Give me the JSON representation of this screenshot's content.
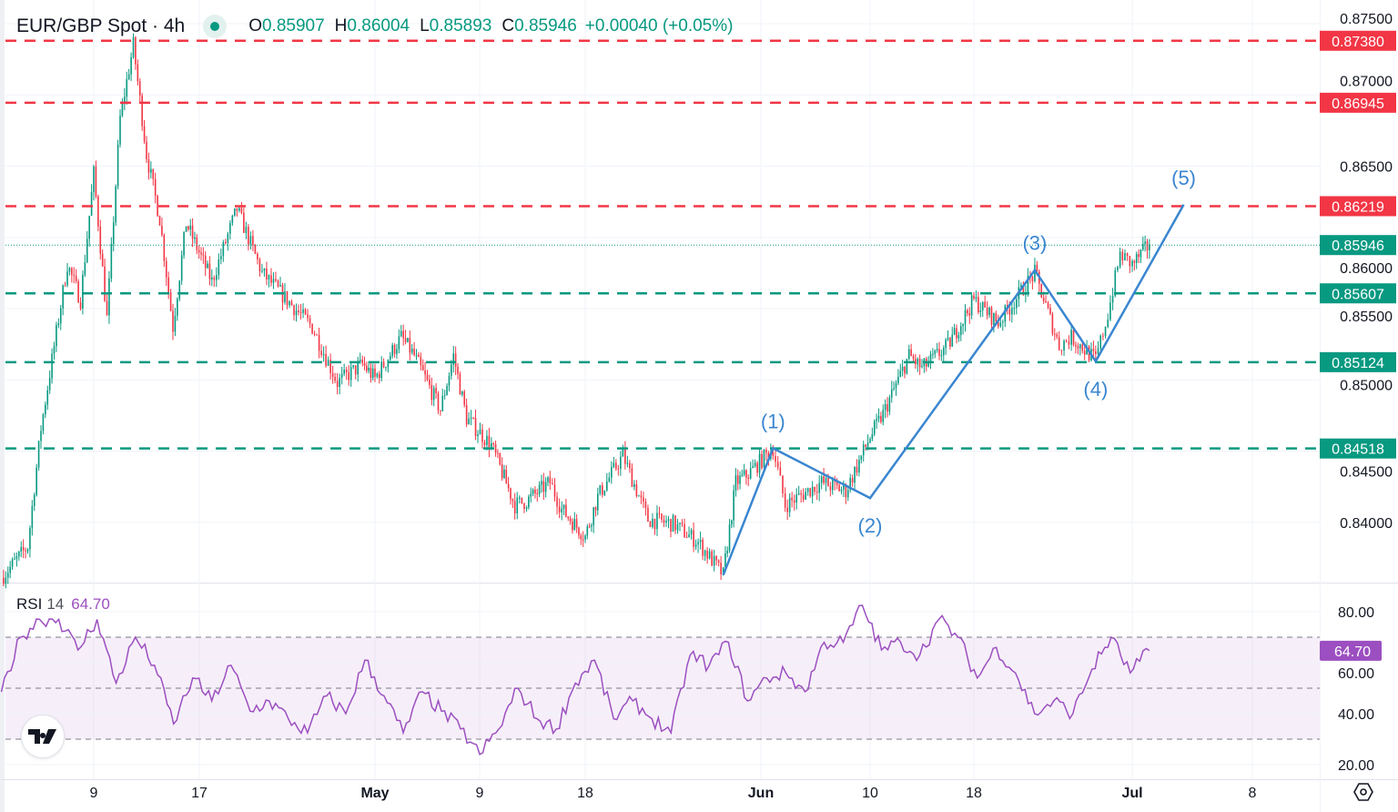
{
  "header": {
    "symbol": "EUR/GBP Spot · 4h",
    "open_label": "O",
    "open": "0.85907",
    "high_label": "H",
    "high": "0.86004",
    "low_label": "L",
    "low": "0.85893",
    "close_label": "C",
    "close": "0.85946",
    "change": "+0.00040 (+0.05%)",
    "market_status_icon": "market-open-dot"
  },
  "rsi_header": {
    "name": "RSI",
    "period": "14",
    "value": "64.70"
  },
  "colors": {
    "up": "#089981",
    "down": "#f23645",
    "rsi": "#9c4fc0",
    "wave": "#3a86d0",
    "resistance": "#f23645",
    "support": "#089981"
  },
  "chart_data": [
    {
      "type": "candlestick",
      "title": "EUR/GBP Spot · 4h",
      "ylim": [
        0.8355,
        0.8765
      ],
      "y_ticks": [
        "0.87500",
        "0.87000",
        "0.86500",
        "0.86000",
        "0.85500",
        "0.85000",
        "0.84500",
        "0.84000"
      ],
      "x_ticks": [
        {
          "label": "9",
          "date": "2024-04-09"
        },
        {
          "label": "17",
          "date": "2024-04-17"
        },
        {
          "label": "May",
          "date": "2024-05-01"
        },
        {
          "label": "9",
          "date": "2024-05-09"
        },
        {
          "label": "18",
          "date": "2024-05-18"
        },
        {
          "label": "Jun",
          "date": "2024-06-01"
        },
        {
          "label": "10",
          "date": "2024-06-10"
        },
        {
          "label": "18",
          "date": "2024-06-18"
        },
        {
          "label": "Jul",
          "date": "2024-07-01"
        },
        {
          "label": "8",
          "date": "2024-07-08"
        }
      ],
      "price_path": [
        [
          "2024-04-02",
          0.8361
        ],
        [
          "2024-04-04",
          0.8383
        ],
        [
          "2024-04-05",
          0.8466
        ],
        [
          "2024-04-07",
          0.8581
        ],
        [
          "2024-04-08",
          0.8556
        ],
        [
          "2024-04-09",
          0.8645
        ],
        [
          "2024-04-10",
          0.8543
        ],
        [
          "2024-04-11",
          0.8684
        ],
        [
          "2024-04-12",
          0.8735
        ],
        [
          "2024-04-13",
          0.8658
        ],
        [
          "2024-04-14",
          0.8613
        ],
        [
          "2024-04-15",
          0.8537
        ],
        [
          "2024-04-16",
          0.861
        ],
        [
          "2024-04-18",
          0.8569
        ],
        [
          "2024-04-20",
          0.862
        ],
        [
          "2024-04-22",
          0.8575
        ],
        [
          "2024-04-24",
          0.8556
        ],
        [
          "2024-04-26",
          0.8537
        ],
        [
          "2024-04-28",
          0.8498
        ],
        [
          "2024-04-30",
          0.8511
        ],
        [
          "2024-05-01",
          0.8501
        ],
        [
          "2024-05-03",
          0.853
        ],
        [
          "2024-05-04",
          0.8517
        ],
        [
          "2024-05-06",
          0.8479
        ],
        [
          "2024-05-07",
          0.8517
        ],
        [
          "2024-05-08",
          0.8473
        ],
        [
          "2024-05-10",
          0.8454
        ],
        [
          "2024-05-12",
          0.8412
        ],
        [
          "2024-05-13",
          0.8415
        ],
        [
          "2024-05-15",
          0.8428
        ],
        [
          "2024-05-16",
          0.8409
        ],
        [
          "2024-05-18",
          0.839
        ],
        [
          "2024-05-19",
          0.8418
        ],
        [
          "2024-05-21",
          0.8447
        ],
        [
          "2024-05-23",
          0.8402
        ],
        [
          "2024-05-25",
          0.8399
        ],
        [
          "2024-05-27",
          0.8386
        ],
        [
          "2024-05-29",
          0.8363
        ],
        [
          "2024-05-30",
          0.8428
        ],
        [
          "2024-05-31",
          0.8434
        ],
        [
          "2024-06-02",
          0.8452
        ],
        [
          "2024-06-03",
          0.8412
        ],
        [
          "2024-06-06",
          0.8428
        ],
        [
          "2024-06-08",
          0.8422
        ],
        [
          "2024-06-10",
          0.846
        ],
        [
          "2024-06-11",
          0.8476
        ],
        [
          "2024-06-13",
          0.8517
        ],
        [
          "2024-06-14",
          0.8508
        ],
        [
          "2024-06-16",
          0.8524
        ],
        [
          "2024-06-18",
          0.8556
        ],
        [
          "2024-06-20",
          0.854
        ],
        [
          "2024-06-23",
          0.8575
        ],
        [
          "2024-06-25",
          0.8524
        ],
        [
          "2024-06-26",
          0.853
        ],
        [
          "2024-06-28",
          0.8514
        ],
        [
          "2024-06-29",
          0.8546
        ],
        [
          "2024-06-30",
          0.8588
        ],
        [
          "2024-07-01",
          0.8581
        ],
        [
          "2024-07-02",
          0.8595
        ]
      ],
      "levels": [
        {
          "value": 0.8738,
          "label": "0.87380",
          "kind": "resistance"
        },
        {
          "value": 0.86945,
          "label": "0.86945",
          "kind": "resistance"
        },
        {
          "value": 0.86219,
          "label": "0.86219",
          "kind": "resistance"
        },
        {
          "value": 0.85607,
          "label": "0.85607",
          "kind": "support"
        },
        {
          "value": 0.85124,
          "label": "0.85124",
          "kind": "support"
        },
        {
          "value": 0.84518,
          "label": "0.84518",
          "kind": "support"
        }
      ],
      "last_price": {
        "value": 0.85946,
        "label": "0.85946"
      },
      "elliott_wave": [
        {
          "label": "",
          "date": "2024-05-29",
          "price": 0.8363
        },
        {
          "label": "(1)",
          "date": "2024-06-02",
          "price": 0.8452
        },
        {
          "label": "(2)",
          "date": "2024-06-10",
          "price": 0.8417
        },
        {
          "label": "(3)",
          "date": "2024-06-23",
          "price": 0.8577
        },
        {
          "label": "(4)",
          "date": "2024-06-28",
          "price": 0.8513
        },
        {
          "label": "(5)",
          "date": "2024-07-04",
          "price": 0.8623
        }
      ]
    },
    {
      "type": "line",
      "title": "RSI 14",
      "ylim": [
        15,
        88
      ],
      "y_ticks": [
        "80.00",
        "60.00",
        "40.00",
        "20.00"
      ],
      "bands": [
        30,
        50,
        70
      ],
      "last_value": {
        "value": 64.7,
        "label": "64.70"
      },
      "values": [
        48.6,
        70,
        77,
        77,
        65,
        77,
        52,
        70,
        59,
        36,
        54,
        45,
        59,
        41,
        45,
        38,
        32.5,
        47,
        40,
        61,
        47,
        32.5,
        48.6,
        41,
        34,
        24,
        34,
        50,
        38,
        34,
        52,
        61,
        38,
        45,
        38,
        32.5,
        63,
        59,
        68,
        45,
        54,
        56,
        48.6,
        68,
        68,
        82.5,
        65,
        68,
        63,
        77,
        70,
        54,
        66,
        56,
        40,
        45,
        40,
        57.5,
        70,
        56,
        64.7
      ]
    }
  ]
}
